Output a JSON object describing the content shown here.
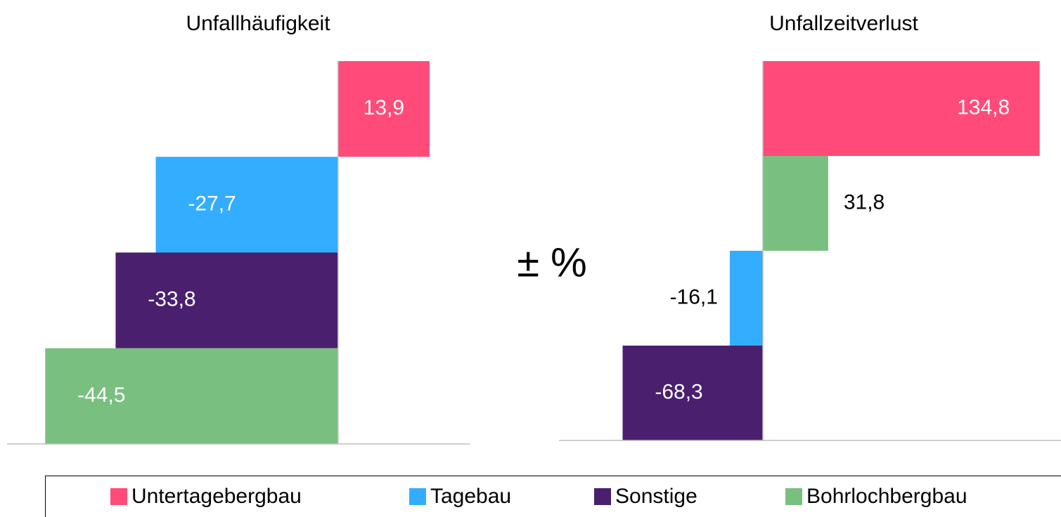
{
  "chart_data": [
    {
      "type": "bar",
      "orientation": "horizontal",
      "title": "Unfallhäufigkeit",
      "categories": [
        "Untertagebergbau",
        "Tagebau",
        "Sonstige",
        "Bohrlochbergbau"
      ],
      "values": [
        13.9,
        -27.7,
        -33.8,
        -44.5
      ],
      "value_labels": [
        "13,9",
        "-27,7",
        "-33,8",
        "-44,5"
      ],
      "colors": [
        "#ff4a7a",
        "#33adff",
        "#4a1f6e",
        "#79bf80"
      ],
      "xlim": [
        -50.3,
        20
      ]
    },
    {
      "type": "bar",
      "orientation": "horizontal",
      "title": "Unfallzeitverlust",
      "categories": [
        "Untertagebergbau",
        "Bohrlochbergbau",
        "Tagebau",
        "Sonstige"
      ],
      "values": [
        134.8,
        31.8,
        -16.1,
        -68.3
      ],
      "value_labels": [
        "134,8",
        "31,8",
        "-16,1",
        "-68,3"
      ],
      "colors": [
        "#ff4a7a",
        "#79bf80",
        "#33adff",
        "#4a1f6e"
      ],
      "xlim": [
        -99.3,
        145.2
      ]
    }
  ],
  "axis_label": "± %",
  "legend": [
    {
      "name": "Untertagebergbau",
      "color": "#ff4a7a"
    },
    {
      "name": "Tagebau",
      "color": "#33adff"
    },
    {
      "name": "Sonstige",
      "color": "#4a1f6e"
    },
    {
      "name": "Bohrlochbergbau",
      "color": "#79bf80"
    }
  ]
}
